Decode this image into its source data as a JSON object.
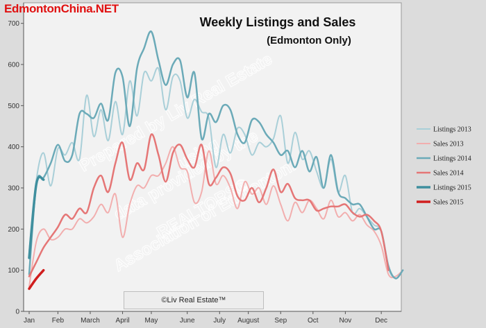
{
  "site_tag": "EdmontonChina.NET",
  "credit": "©Liv Real Estate™",
  "watermark_lines": [
    "Prepared by Liv Real Estate",
    "using",
    "data provided by the",
    "REALTORS®",
    "Association of Edmonton."
  ],
  "chart_data": {
    "type": "line",
    "title": "Weekly Listings and Sales",
    "subtitle": "(Edmonton Only)",
    "xlabel": "",
    "ylabel": "",
    "ylim": [
      0,
      750
    ],
    "yticks": [
      0,
      100,
      200,
      300,
      400,
      500,
      600,
      700
    ],
    "x_tick_labels": [
      "Jan",
      "Feb",
      "March",
      "April",
      "May",
      "June",
      "July",
      "August",
      "Sep",
      "Oct",
      "Nov",
      "Dec"
    ],
    "x_tick_weeks": [
      0,
      4,
      8.5,
      13,
      17,
      22,
      26.5,
      30.5,
      35,
      39.5,
      44,
      49
    ],
    "grid": false,
    "legend_position": "right",
    "x_unit": "week of year",
    "series": [
      {
        "name": "Listings 2013",
        "color": "#a9cfd8",
        "width": 2,
        "values": [
          145,
          320,
          385,
          305,
          395,
          380,
          410,
          370,
          525,
          425,
          490,
          415,
          510,
          430,
          560,
          475,
          580,
          560,
          590,
          490,
          570,
          560,
          470,
          515,
          485,
          470,
          350,
          430,
          385,
          445,
          430,
          380,
          410,
          400,
          420,
          475,
          360,
          435,
          370,
          390,
          340,
          300,
          370,
          290,
          330,
          240,
          250,
          230,
          210,
          195,
          105,
          80,
          100
        ]
      },
      {
        "name": "Sales 2013",
        "color": "#f2aeae",
        "width": 2,
        "values": [
          60,
          170,
          200,
          175,
          180,
          200,
          200,
          225,
          215,
          230,
          260,
          240,
          285,
          180,
          260,
          305,
          300,
          330,
          330,
          360,
          400,
          350,
          340,
          265,
          290,
          390,
          310,
          330,
          300,
          250,
          315,
          285,
          300,
          260,
          305,
          260,
          220,
          265,
          240,
          270,
          250,
          225,
          270,
          230,
          240,
          220,
          235,
          210,
          195,
          160,
          90,
          85,
          100
        ]
      },
      {
        "name": "Listings 2014",
        "color": "#6baab8",
        "width": 2.5,
        "values": [
          90,
          310,
          325,
          360,
          405,
          365,
          380,
          480,
          480,
          470,
          505,
          465,
          580,
          570,
          450,
          590,
          640,
          680,
          610,
          550,
          600,
          610,
          520,
          580,
          420,
          480,
          460,
          500,
          490,
          430,
          410,
          465,
          460,
          430,
          410,
          380,
          390,
          350,
          390,
          340,
          375,
          300,
          380,
          290,
          275,
          260,
          260,
          230,
          200,
          195,
          110,
          80,
          100
        ]
      },
      {
        "name": "Sales 2014",
        "color": "#e57676",
        "width": 2.5,
        "values": [
          85,
          120,
          155,
          180,
          205,
          235,
          225,
          250,
          240,
          300,
          330,
          290,
          360,
          410,
          320,
          360,
          345,
          430,
          380,
          315,
          385,
          405,
          370,
          350,
          405,
          310,
          325,
          350,
          335,
          280,
          270,
          300,
          265,
          300,
          345,
          290,
          310,
          275,
          270,
          270,
          245,
          250,
          255,
          255,
          260,
          240,
          230,
          235,
          220,
          195,
          100,
          null,
          null
        ]
      },
      {
        "name": "Listings 2015",
        "color": "#3f8f9e",
        "width": 3.5,
        "values": [
          130,
          310,
          320
        ]
      },
      {
        "name": "Sales 2015",
        "color": "#d01e1e",
        "width": 3.5,
        "values": [
          55,
          80,
          100
        ]
      }
    ]
  }
}
